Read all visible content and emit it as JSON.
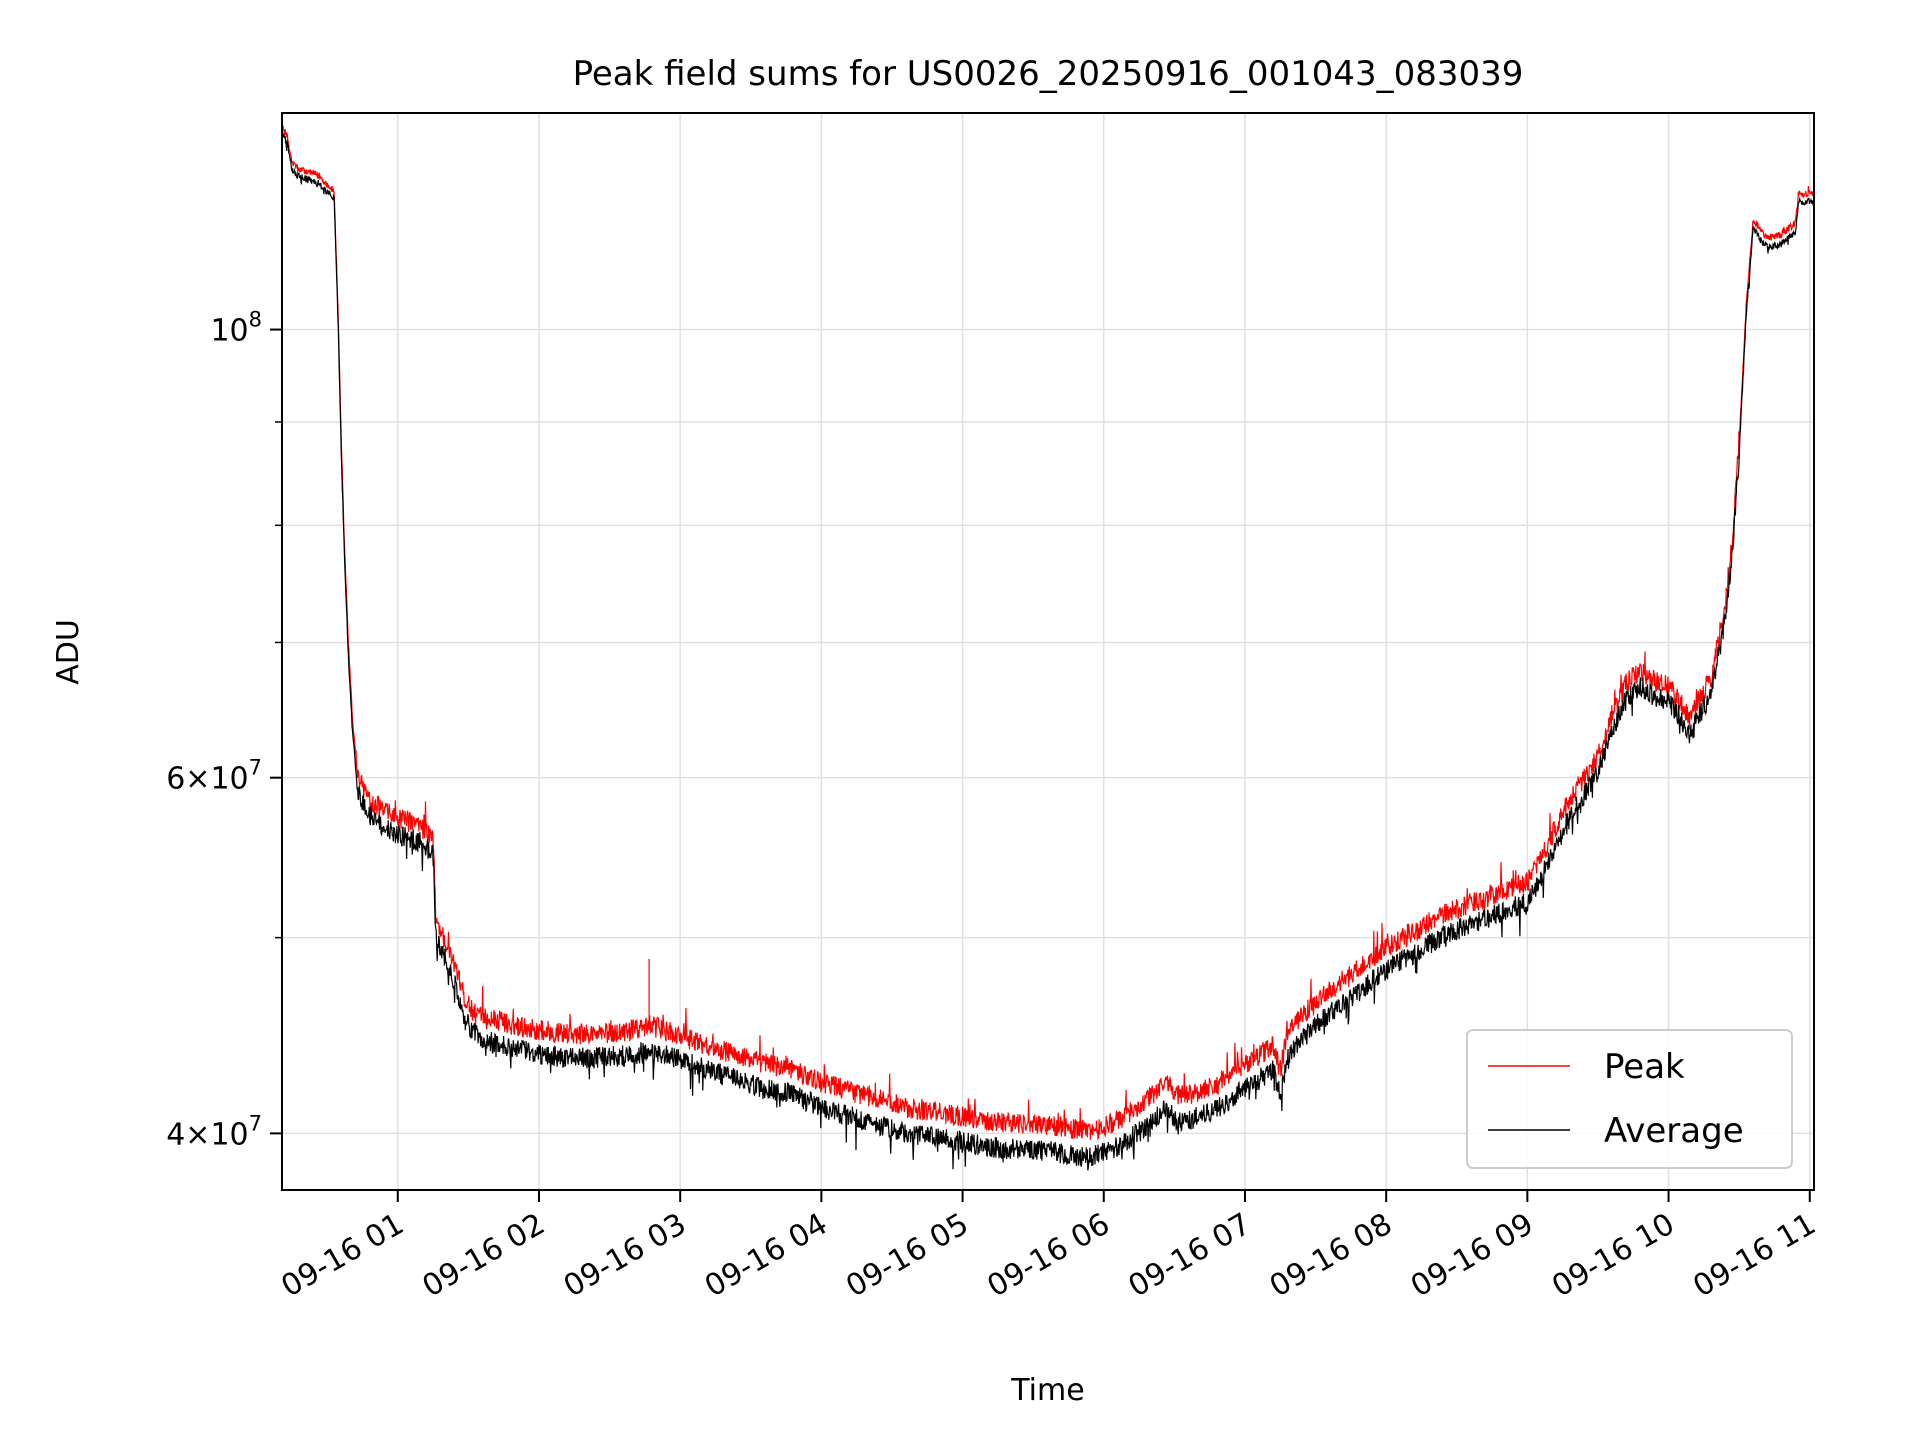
{
  "chart_data": {
    "type": "line",
    "title": "Peak field sums for US0026_20250916_001043_083039",
    "xlabel": "Time",
    "ylabel": "ADU",
    "yscale": "log",
    "xlim_hours": [
      0.18,
      11.03
    ],
    "ylim": [
      37500000,
      128000000
    ],
    "grid": true,
    "legend_position": "lower-right",
    "x_ticks": [
      {
        "hour": 1,
        "label": "09-16 01"
      },
      {
        "hour": 2,
        "label": "09-16 02"
      },
      {
        "hour": 3,
        "label": "09-16 03"
      },
      {
        "hour": 4,
        "label": "09-16 04"
      },
      {
        "hour": 5,
        "label": "09-16 05"
      },
      {
        "hour": 6,
        "label": "09-16 06"
      },
      {
        "hour": 7,
        "label": "09-16 07"
      },
      {
        "hour": 8,
        "label": "09-16 08"
      },
      {
        "hour": 9,
        "label": "09-16 09"
      },
      {
        "hour": 10,
        "label": "09-16 10"
      },
      {
        "hour": 11,
        "label": "09-16 11"
      }
    ],
    "y_ticks_major": [
      {
        "value": 40000000,
        "base": "4×10",
        "exp": "7"
      },
      {
        "value": 60000000,
        "base": "6×10",
        "exp": "7"
      },
      {
        "value": 100000000,
        "base": "10",
        "exp": "8"
      }
    ],
    "y_ticks_minor": [
      50000000,
      70000000,
      80000000,
      90000000
    ],
    "series": [
      {
        "name": "Peak",
        "color": "#ff0000",
        "x_hours": [
          0.18,
          0.22,
          0.25,
          0.3,
          0.4,
          0.45,
          0.5,
          0.55,
          0.58,
          0.6,
          0.62,
          0.65,
          0.68,
          0.72,
          0.8,
          0.9,
          1.0,
          1.1,
          1.2,
          1.25,
          1.27,
          1.3,
          1.4,
          1.48,
          1.55,
          1.6,
          1.7,
          1.8,
          2.0,
          2.2,
          2.4,
          2.6,
          2.8,
          3.0,
          3.2,
          3.5,
          3.8,
          4.0,
          4.3,
          4.6,
          5.0,
          5.3,
          5.6,
          5.9,
          6.1,
          6.3,
          6.45,
          6.5,
          6.6,
          6.8,
          7.0,
          7.2,
          7.25,
          7.3,
          7.4,
          7.6,
          7.8,
          8.0,
          8.2,
          8.4,
          8.6,
          8.8,
          9.0,
          9.1,
          9.2,
          9.3,
          9.4,
          9.5,
          9.6,
          9.7,
          9.8,
          9.9,
          10.0,
          10.1,
          10.15,
          10.2,
          10.3,
          10.4,
          10.45,
          10.5,
          10.55,
          10.6,
          10.65,
          10.7,
          10.8,
          10.9,
          10.92,
          10.95,
          11.0,
          11.03
        ],
        "y_values": [
          126000000,
          124500000,
          121000000,
          120000000,
          119500000,
          119000000,
          118000000,
          117000000,
          100000000,
          88000000,
          79000000,
          70000000,
          64000000,
          60000000,
          58500000,
          57800000,
          57200000,
          57000000,
          56500000,
          56000000,
          51000000,
          50500000,
          48500000,
          46500000,
          45800000,
          45600000,
          45500000,
          45300000,
          45000000,
          44800000,
          44800000,
          44900000,
          45200000,
          44700000,
          44200000,
          43500000,
          43000000,
          42400000,
          41800000,
          41200000,
          40800000,
          40500000,
          40400000,
          40100000,
          40600000,
          41500000,
          42500000,
          41800000,
          41800000,
          42300000,
          43300000,
          44200000,
          43000000,
          44800000,
          45700000,
          47100000,
          48200000,
          49400000,
          50300000,
          51300000,
          52000000,
          52600000,
          53300000,
          54800000,
          56700000,
          58500000,
          60000000,
          61500000,
          64500000,
          66800000,
          67800000,
          67000000,
          66700000,
          65200000,
          64000000,
          65300000,
          67200000,
          73000000,
          78500000,
          88000000,
          103000000,
          113500000,
          112000000,
          111000000,
          111500000,
          113000000,
          117000000,
          116500000,
          117000000,
          116800000
        ],
        "noise": 0.012
      },
      {
        "name": "Average",
        "color": "#000000",
        "x_hours": [
          0.18,
          0.22,
          0.25,
          0.3,
          0.4,
          0.45,
          0.5,
          0.55,
          0.58,
          0.6,
          0.62,
          0.65,
          0.68,
          0.72,
          0.8,
          0.9,
          1.0,
          1.1,
          1.2,
          1.25,
          1.27,
          1.3,
          1.4,
          1.48,
          1.55,
          1.6,
          1.7,
          1.8,
          2.0,
          2.2,
          2.4,
          2.6,
          2.8,
          3.0,
          3.2,
          3.5,
          3.8,
          4.0,
          4.3,
          4.6,
          5.0,
          5.3,
          5.6,
          5.9,
          6.1,
          6.3,
          6.45,
          6.5,
          6.6,
          6.8,
          7.0,
          7.2,
          7.25,
          7.3,
          7.4,
          7.6,
          7.8,
          8.0,
          8.2,
          8.4,
          8.6,
          8.8,
          9.0,
          9.1,
          9.2,
          9.3,
          9.4,
          9.5,
          9.6,
          9.7,
          9.8,
          9.9,
          10.0,
          10.1,
          10.15,
          10.2,
          10.3,
          10.4,
          10.45,
          10.5,
          10.55,
          10.6,
          10.65,
          10.7,
          10.8,
          10.9,
          10.92,
          10.95,
          11.0,
          11.03
        ],
        "y_values": [
          125000000,
          123500000,
          120000000,
          119000000,
          118500000,
          118000000,
          117000000,
          116000000,
          99000000,
          87000000,
          78000000,
          69000000,
          63000000,
          59000000,
          57500000,
          56800000,
          56200000,
          56000000,
          55500000,
          55000000,
          50000000,
          49500000,
          47500000,
          45500000,
          44800000,
          44500000,
          44300000,
          44100000,
          43800000,
          43600000,
          43600000,
          43700000,
          44000000,
          43500000,
          43000000,
          42300000,
          41800000,
          41200000,
          40600000,
          40000000,
          39600000,
          39300000,
          39200000,
          38900000,
          39400000,
          40300000,
          41300000,
          40600000,
          40600000,
          41100000,
          42100000,
          43000000,
          41800000,
          43600000,
          44500000,
          45900000,
          47000000,
          48200000,
          49100000,
          50100000,
          50800000,
          51400000,
          52100000,
          53600000,
          55500000,
          57300000,
          58800000,
          60300000,
          63300000,
          65600000,
          66600000,
          65800000,
          65500000,
          64000000,
          62800000,
          64100000,
          66000000,
          71800000,
          77300000,
          86800000,
          101800000,
          112300000,
          110800000,
          109800000,
          110300000,
          111800000,
          115800000,
          115300000,
          115800000,
          115600000
        ],
        "noise": 0.012
      }
    ]
  }
}
